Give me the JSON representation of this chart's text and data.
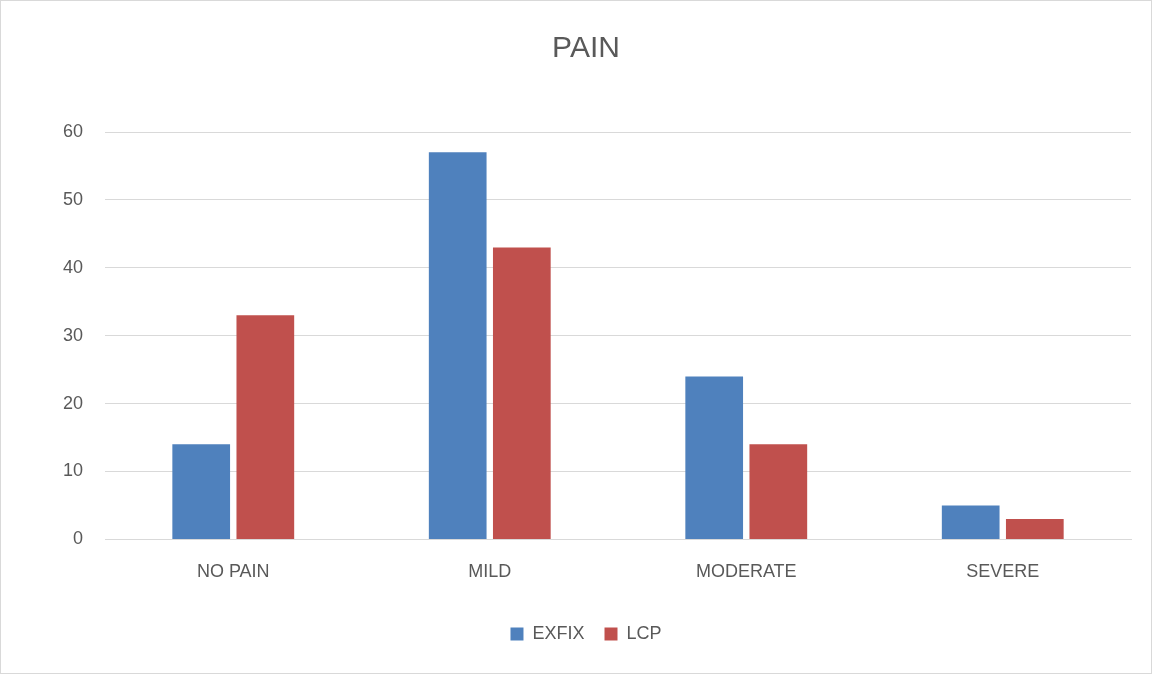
{
  "chart_data": {
    "type": "bar",
    "title": "PAIN",
    "categories": [
      "NO PAIN",
      "MILD",
      "MODERATE",
      "SEVERE"
    ],
    "series": [
      {
        "name": "EXFIX",
        "color": "#4f81bd",
        "values": [
          14,
          57,
          24,
          5
        ]
      },
      {
        "name": "LCP",
        "color": "#c0504d",
        "values": [
          33,
          43,
          14,
          3
        ]
      }
    ],
    "ylim": [
      0,
      60
    ],
    "yticks": [
      0,
      10,
      20,
      30,
      40,
      50,
      60
    ],
    "grid": "y",
    "legend": "bottom"
  }
}
